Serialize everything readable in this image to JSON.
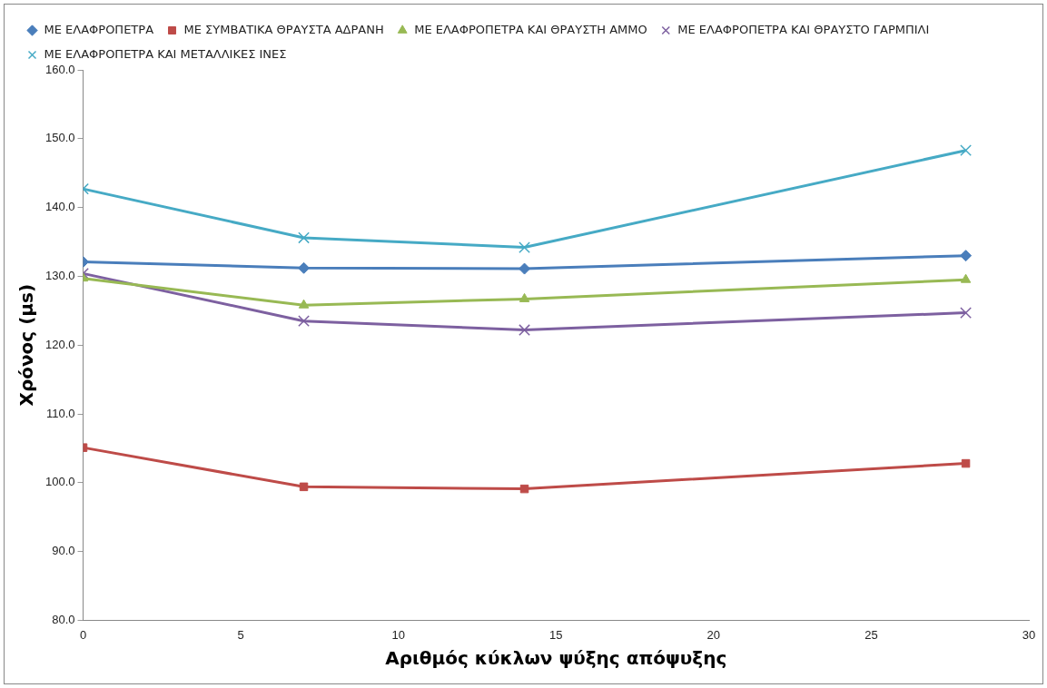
{
  "chart_data": {
    "type": "line",
    "xlabel": "Αριθμός κύκλων ψύξης απόψυξης",
    "ylabel": "Χρόνος (μs)",
    "x": [
      0,
      7,
      14,
      28
    ],
    "series": [
      {
        "name": "ΜΕ ΕΛΑΦΡΟΠΕΤΡΑ",
        "color": "#4a7ebb",
        "marker": "diamond",
        "values": [
          132.1,
          131.2,
          131.1,
          133.0
        ]
      },
      {
        "name": "ΜΕ ΣΥΜΒΑΤΙΚΑ ΘΡΑΥΣΤΑ ΑΔΡΑΝΗ",
        "color": "#be4b48",
        "marker": "square",
        "values": [
          105.1,
          99.4,
          99.1,
          102.8
        ]
      },
      {
        "name": "ΜΕ ΕΛΑΦΡΟΠΕΤΡΑ ΚΑΙ ΘΡΑΥΣΤΗ ΑΜΜΟ",
        "color": "#98b954",
        "marker": "triangle",
        "values": [
          129.7,
          125.8,
          126.7,
          129.5
        ]
      },
      {
        "name": "ΜΕ ΕΛΑΦΡΟΠΕΤΡΑ ΚΑΙ ΘΡΑΥΣΤΟ ΓΑΡΜΠΙΛΙ",
        "color": "#7d60a0",
        "marker": "cross",
        "values": [
          130.4,
          123.5,
          122.2,
          124.7
        ]
      },
      {
        "name": "ΜΕ ΕΛΑΦΡΟΠΕΤΡΑ ΚΑΙ ΜΕΤΑΛΛΙΚΕΣ ΙΝΕΣ",
        "color": "#46aac5",
        "marker": "cross",
        "values": [
          142.7,
          135.6,
          134.2,
          148.3
        ]
      }
    ],
    "xlim": [
      0,
      30
    ],
    "xticks": [
      0,
      5,
      10,
      15,
      20,
      25,
      30
    ],
    "ylim": [
      80,
      160
    ],
    "yticks": [
      {
        "value": 80,
        "label": "80.0"
      },
      {
        "value": 90,
        "label": "90.0"
      },
      {
        "value": 100,
        "label": "100.0"
      },
      {
        "value": 110,
        "label": "110.0"
      },
      {
        "value": 120,
        "label": "120.0"
      },
      {
        "value": 130,
        "label": "130.0"
      },
      {
        "value": 140,
        "label": "140.0"
      },
      {
        "value": 150,
        "label": "150.0"
      },
      {
        "value": 160,
        "label": "160.0"
      }
    ],
    "grid": false,
    "legend": "top"
  }
}
